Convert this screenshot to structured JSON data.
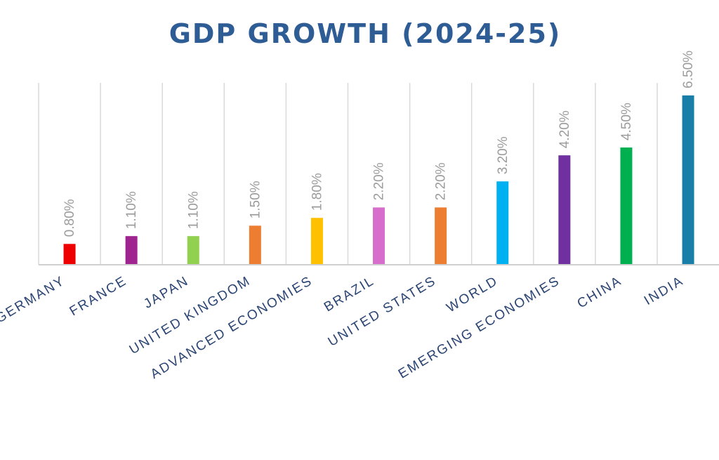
{
  "title": "GDP GROWTH (2024-25)",
  "chart_data": {
    "type": "bar",
    "title": "GDP GROWTH (2024-25)",
    "categories": [
      "GERMANY",
      "FRANCE",
      "JAPAN",
      "UNITED KINGDOM",
      "ADVANCED ECONOMIES",
      "BRAZIL",
      "UNITED STATES",
      "WORLD",
      "EMERGING ECONOMIES",
      "CHINA",
      "INDIA"
    ],
    "values": [
      0.8,
      1.1,
      1.1,
      1.5,
      1.8,
      2.2,
      2.2,
      3.2,
      4.2,
      4.5,
      6.5
    ],
    "value_labels": [
      "0.80%",
      "1.10%",
      "1.10%",
      "1.50%",
      "1.80%",
      "2.20%",
      "2.20%",
      "3.20%",
      "4.20%",
      "4.50%",
      "6.50%"
    ],
    "colors": [
      "#ee0000",
      "#a0248f",
      "#92d050",
      "#ed7d31",
      "#ffc000",
      "#d86ecc",
      "#ed7d31",
      "#00b0f0",
      "#7030a0",
      "#00b050",
      "#1a7fa8"
    ],
    "xlabel": "",
    "ylabel": "",
    "ylim": [
      0,
      7
    ],
    "grid": "vertical",
    "legend": "none"
  }
}
